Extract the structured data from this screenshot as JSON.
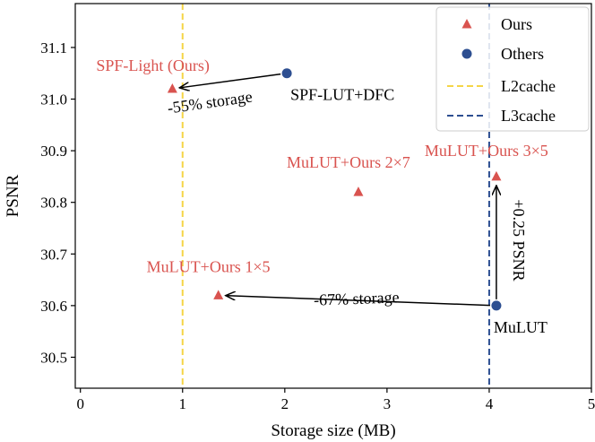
{
  "chart_data": {
    "type": "scatter",
    "title": "",
    "xlabel": "Storage size (MB)",
    "ylabel": "PSNR",
    "xlim": [
      -0.05,
      5.0
    ],
    "ylim": [
      30.44,
      31.185
    ],
    "xticks": [
      0,
      1,
      2,
      3,
      4,
      5
    ],
    "yticks": [
      30.5,
      30.6,
      30.7,
      30.8,
      30.9,
      31.0,
      31.1
    ],
    "xtick_labels": [
      "0",
      "1",
      "2",
      "3",
      "4",
      "5"
    ],
    "ytick_labels": [
      "30.5",
      "30.6",
      "30.7",
      "30.8",
      "30.9",
      "31.0",
      "31.1"
    ],
    "grid": false,
    "legend_position": "top-right",
    "series": [
      {
        "name": "Ours",
        "marker": "triangle",
        "color": "#d9534f",
        "points": [
          {
            "label": "SPF-Light (Ours)",
            "x": 0.9,
            "y": 31.02
          },
          {
            "label": "MuLUT+Ours 1×5",
            "x": 1.35,
            "y": 30.62
          },
          {
            "label": "MuLUT+Ours 2×7",
            "x": 2.72,
            "y": 30.82
          },
          {
            "label": "MuLUT+Ours 3×5",
            "x": 4.07,
            "y": 30.85
          }
        ]
      },
      {
        "name": "Others",
        "marker": "circle",
        "color": "#2d4f91",
        "points": [
          {
            "label": "SPF-LUT+DFC",
            "x": 2.02,
            "y": 31.05
          },
          {
            "label": "MuLUT",
            "x": 4.07,
            "y": 30.6
          }
        ]
      }
    ],
    "reference_lines": [
      {
        "name": "L2cache",
        "x": 1.0,
        "color": "#f5d547",
        "style": "dashed"
      },
      {
        "name": "L3cache",
        "x": 4.0,
        "color": "#2d4f91",
        "style": "dashed"
      }
    ],
    "annotations": [
      {
        "text": "-55% storage",
        "from": [
          2.02,
          31.05
        ],
        "to": [
          0.9,
          31.02
        ]
      },
      {
        "text": "-67% storage",
        "from": [
          4.07,
          30.6
        ],
        "to": [
          1.35,
          30.62
        ]
      },
      {
        "text": "+0.25 PSNR",
        "from": [
          4.07,
          30.6
        ],
        "to": [
          4.07,
          30.85
        ]
      }
    ]
  }
}
